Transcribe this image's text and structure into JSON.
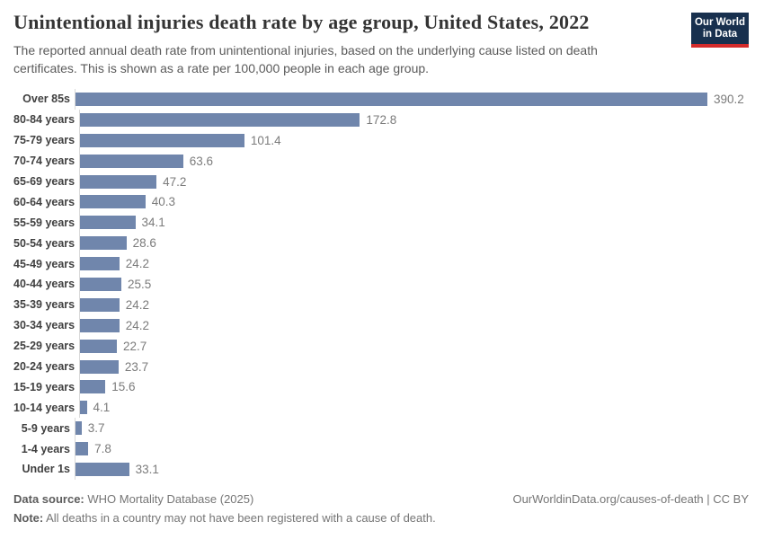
{
  "header": {
    "title": "Unintentional injuries death rate by age group, United States, 2022",
    "subtitle": "The reported annual death rate from unintentional injuries, based on the underlying cause listed on death certificates. This is shown as a rate per 100,000 people in each age group."
  },
  "logo": {
    "line1": "Our World",
    "line2": "in Data",
    "bg_color": "#18304e",
    "accent_color": "#d42b2b"
  },
  "chart_data": {
    "type": "bar",
    "orientation": "horizontal",
    "title": "Unintentional injuries death rate by age group, United States, 2022",
    "unit": "deaths per 100,000 people in each age group",
    "categories": [
      "Over 85s",
      "80-84 years",
      "75-79 years",
      "70-74 years",
      "65-69 years",
      "60-64 years",
      "55-59 years",
      "50-54 years",
      "45-49 years",
      "40-44 years",
      "35-39 years",
      "30-34 years",
      "25-29 years",
      "20-24 years",
      "15-19 years",
      "10-14 years",
      "5-9 years",
      "1-4 years",
      "Under 1s"
    ],
    "values": [
      390.2,
      172.8,
      101.4,
      63.6,
      47.2,
      40.3,
      34.1,
      28.6,
      24.2,
      25.5,
      24.2,
      24.2,
      22.7,
      23.7,
      15.6,
      4.1,
      3.7,
      7.8,
      33.1
    ],
    "xlabel": "",
    "ylabel": "",
    "xlim": [
      0,
      390.2
    ],
    "grid": false,
    "value_labels_shown": true,
    "legend": "none",
    "bar_color": "#7086ac",
    "axis_line_color": "#d9d9d9"
  },
  "footer": {
    "source_label": "Data source:",
    "source": "WHO Mortality Database (2025)",
    "link": "OurWorldinData.org/causes-of-death | CC BY",
    "note_label": "Note:",
    "note": "All deaths in a country may not have been registered with a cause of death."
  }
}
